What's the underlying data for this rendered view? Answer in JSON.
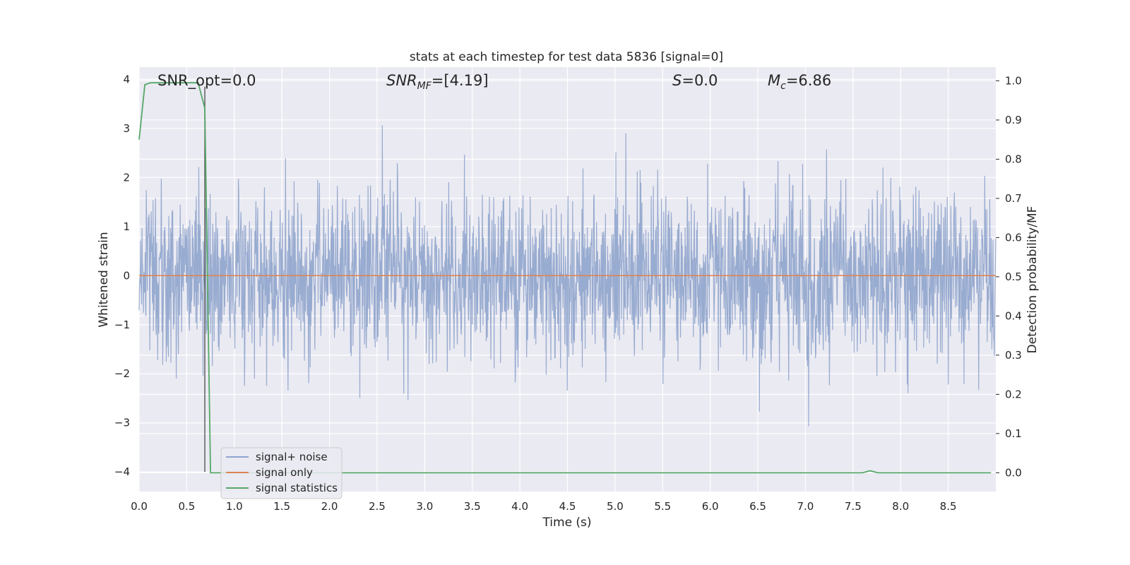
{
  "chart_data": {
    "type": "line",
    "title": "stats at each timestep for test data 5836 [signal=0]",
    "xlabel": "Time (s)",
    "ylabel_left": "Whitened strain",
    "ylabel_right": "Detection probability/MF",
    "xlim": [
      0.0,
      9.0
    ],
    "ylim_left": [
      -4.4,
      4.25
    ],
    "ylim_right": [
      -0.048,
      1.035
    ],
    "x_ticks": [
      "0.0",
      "0.5",
      "1.0",
      "1.5",
      "2.0",
      "2.5",
      "3.0",
      "3.5",
      "4.0",
      "4.5",
      "5.0",
      "5.5",
      "6.0",
      "6.5",
      "7.0",
      "7.5",
      "8.0",
      "8.5"
    ],
    "y_left_ticks": [
      "4",
      "3",
      "2",
      "1",
      "0",
      "−1",
      "−2",
      "−3",
      "−4"
    ],
    "y_right_ticks": [
      "1.0",
      "0.9",
      "0.8",
      "0.7",
      "0.6",
      "0.5",
      "0.4",
      "0.3",
      "0.2",
      "0.1",
      "0.0"
    ],
    "grid": true,
    "legend_position": "lower-left",
    "annotations": [
      {
        "text": "SNR_opt=0.0",
        "x": 0.2
      },
      {
        "text": "SNR",
        "sub": "MF",
        "tail": "=[4.19]",
        "x": 2.6
      },
      {
        "text": "S",
        "tail": "=0.0",
        "x": 5.6
      },
      {
        "text": "M",
        "sub": "c",
        "tail": "=6.86",
        "x": 6.6
      }
    ],
    "vline": {
      "x": 0.69,
      "ymin": -4.0,
      "ymax": 3.85
    },
    "series": [
      {
        "name": "signal+ noise",
        "color": "#8fa4cc",
        "axis": "left",
        "noise_std": 0.85,
        "noise_envelope": [
          -3.3,
          3.9
        ]
      },
      {
        "name": "signal only",
        "color": "#dd8452",
        "axis": "left",
        "x": [
          0.0,
          9.0
        ],
        "y": [
          0.0,
          0.0
        ]
      },
      {
        "name": "signal statistics",
        "color": "#55a868",
        "axis": "right",
        "x": [
          0.0,
          0.06,
          0.12,
          0.3,
          0.5,
          0.62,
          0.69,
          0.75,
          1.0,
          3.0,
          5.0,
          7.0,
          7.6,
          7.68,
          7.76,
          8.0,
          8.5,
          8.95
        ],
        "y": [
          0.85,
          0.99,
          0.995,
          0.995,
          0.995,
          0.995,
          0.93,
          0.0,
          0.0,
          0.0,
          0.0,
          0.0,
          0.0,
          0.005,
          0.0,
          0.0,
          0.0,
          0.0
        ]
      }
    ]
  }
}
